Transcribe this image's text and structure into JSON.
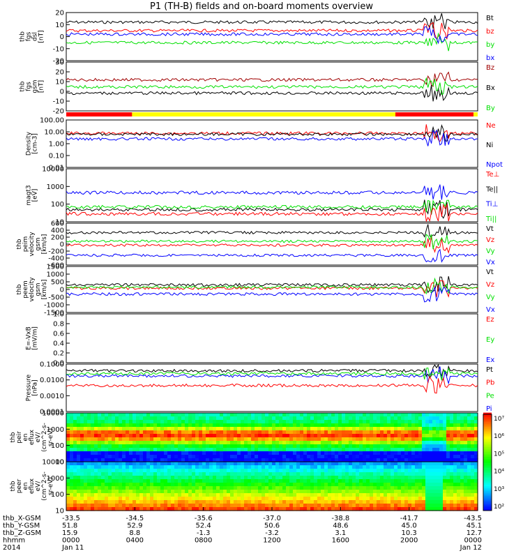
{
  "title": "P1 (TH-B) fields and on-board moments overview",
  "colors": {
    "black": "#000000",
    "red": "#ff0000",
    "green": "#00e000",
    "blue": "#0000ff",
    "darkred": "#a00000",
    "yellow": "#ffff00"
  },
  "chart_data": [
    {
      "type": "line",
      "id": "fgs_dsl",
      "ylabel": [
        "thb",
        "fgs",
        "dsl",
        "[nT]"
      ],
      "yticks": [
        "20",
        "10",
        "0",
        "-10",
        "-20"
      ],
      "ylim": [
        -20,
        20
      ],
      "legend": [
        {
          "name": "Bt",
          "color": "black"
        },
        {
          "name": "bz",
          "color": "red"
        },
        {
          "name": "by",
          "color": "green"
        },
        {
          "name": "bx",
          "color": "blue"
        }
      ],
      "series": [
        {
          "name": "Bt",
          "color": "black",
          "level": 12
        },
        {
          "name": "bz",
          "color": "red",
          "level": 5
        },
        {
          "name": "by",
          "color": "green",
          "level": -5
        },
        {
          "name": "bx",
          "color": "blue",
          "level": 2
        }
      ]
    },
    {
      "type": "line",
      "id": "fgs_gsm",
      "ylabel": [
        "thb",
        "fgs",
        "gsm",
        "[nT]"
      ],
      "yticks": [
        "30",
        "20",
        "10",
        "0",
        "-10",
        "-20"
      ],
      "ylim": [
        -25,
        30
      ],
      "legend": [
        {
          "name": "Bz",
          "color": "darkred"
        },
        {
          "name": "Bx",
          "color": "black"
        },
        {
          "name": "By",
          "color": "green"
        }
      ],
      "series": [
        {
          "name": "Bz",
          "color": "darkred",
          "level": 10
        },
        {
          "name": "Bx",
          "color": "black",
          "level": -5
        },
        {
          "name": "By",
          "color": "green",
          "level": 2
        }
      ]
    },
    {
      "type": "bar",
      "id": "mode_bar",
      "segments": [
        {
          "from": 0,
          "to": 0.16,
          "color": "red"
        },
        {
          "from": 0.16,
          "to": 0.8,
          "color": "yellow"
        },
        {
          "from": 0.8,
          "to": 0.99,
          "color": "red"
        },
        {
          "from": 0.99,
          "to": 1,
          "color": "yellow"
        }
      ]
    },
    {
      "type": "line",
      "id": "density",
      "ylabel": [
        "Density",
        "[cm-3]"
      ],
      "yticks": [
        "100.00",
        "10.00",
        "1.00",
        "0.10",
        "0.01"
      ],
      "log": true,
      "legend": [
        {
          "name": "Ne",
          "color": "red"
        },
        {
          "name": "Ni",
          "color": "black"
        },
        {
          "name": "Npot",
          "color": "blue"
        }
      ],
      "series": [
        {
          "name": "Ne",
          "color": "red",
          "level": 0.72
        },
        {
          "name": "Ni",
          "color": "black",
          "level": 0.7
        },
        {
          "name": "Npot",
          "color": "blue",
          "level": 0.6
        }
      ]
    },
    {
      "type": "line",
      "id": "temperature",
      "ylabel": [
        "magt3",
        "[eV]"
      ],
      "yticks": [
        "10000",
        "1000",
        "100",
        "10"
      ],
      "log": true,
      "legend": [
        {
          "name": "Te⊥",
          "color": "red"
        },
        {
          "name": "Te||",
          "color": "black"
        },
        {
          "name": "Ti⊥",
          "color": "blue"
        },
        {
          "name": "Ti||",
          "color": "green"
        }
      ],
      "series": [
        {
          "name": "Te||",
          "color": "black",
          "level": 0.23
        },
        {
          "name": "Ti||",
          "color": "green",
          "level": 0.28
        },
        {
          "name": "Ti⊥",
          "color": "blue",
          "level": 0.55
        },
        {
          "name": "Te⊥",
          "color": "red",
          "level": 0.15
        }
      ]
    },
    {
      "type": "line",
      "id": "peim_velocity",
      "ylabel": [
        "thb",
        "peim",
        "velocity",
        "gsm",
        "[km/s]"
      ],
      "yticks": [
        "600",
        "400",
        "200",
        "0",
        "-200",
        "-400",
        "-600"
      ],
      "ylim": [
        -600,
        600
      ],
      "legend": [
        {
          "name": "Vt",
          "color": "black"
        },
        {
          "name": "Vz",
          "color": "red"
        },
        {
          "name": "Vy",
          "color": "green"
        },
        {
          "name": "Vx",
          "color": "blue"
        }
      ],
      "series": [
        {
          "name": "Vt",
          "color": "black",
          "level": 330
        },
        {
          "name": "Vz",
          "color": "red",
          "level": -30
        },
        {
          "name": "Vy",
          "color": "green",
          "level": 80
        },
        {
          "name": "Vx",
          "color": "blue",
          "level": -320
        }
      ]
    },
    {
      "type": "line",
      "id": "peem_velocity",
      "ylabel": [
        "thb",
        "peem",
        "velocity",
        "gsm",
        "[km/s]"
      ],
      "yticks": [
        "1500",
        "1000",
        "500",
        "0",
        "-500",
        "-1000",
        "-1500"
      ],
      "ylim": [
        -1500,
        1500
      ],
      "legend": [
        {
          "name": "Vt",
          "color": "black"
        },
        {
          "name": "Vz",
          "color": "red"
        },
        {
          "name": "Vy",
          "color": "green"
        },
        {
          "name": "Vx",
          "color": "blue"
        }
      ],
      "series": [
        {
          "name": "Vt",
          "color": "black",
          "level": 300
        },
        {
          "name": "Vz",
          "color": "red",
          "level": 80
        },
        {
          "name": "Vy",
          "color": "green",
          "level": 150
        },
        {
          "name": "Vx",
          "color": "blue",
          "level": -300
        }
      ]
    },
    {
      "type": "line",
      "id": "efield",
      "ylabel": [
        "E=-VxB",
        "[mV/m]"
      ],
      "yticks": [
        "1.0",
        "0.8",
        "0.6",
        "0.4",
        "0.2",
        "0.0"
      ],
      "ylim": [
        0,
        1
      ],
      "legend": [
        {
          "name": "Ez",
          "color": "red"
        },
        {
          "name": "Ey",
          "color": "green"
        },
        {
          "name": "Ex",
          "color": "blue"
        }
      ],
      "series": []
    },
    {
      "type": "line",
      "id": "pressure",
      "ylabel": [
        "Pressure",
        "[nPa]"
      ],
      "yticks": [
        "0.1000",
        "0.0100",
        "0.0010",
        "0.0001"
      ],
      "log": true,
      "legend": [
        {
          "name": "Pt",
          "color": "black"
        },
        {
          "name": "Pb",
          "color": "red"
        },
        {
          "name": "Pe",
          "color": "green"
        },
        {
          "name": "Pi",
          "color": "blue"
        }
      ],
      "series": [
        {
          "name": "Pt",
          "color": "black",
          "level": 0.86
        },
        {
          "name": "Pi",
          "color": "blue",
          "level": 0.75
        },
        {
          "name": "Pe",
          "color": "green",
          "level": 0.8
        },
        {
          "name": "Pb",
          "color": "red",
          "level": 0.55
        }
      ]
    },
    {
      "type": "heatmap",
      "id": "peir_spectrogram",
      "ylabel": [
        "thb",
        "peir",
        "en",
        "eflux",
        "eV/",
        "(cm^2-s-",
        "sr-eV)"
      ],
      "yticks": [
        "10000",
        "1000",
        "100",
        "10"
      ],
      "log": true
    },
    {
      "type": "heatmap",
      "id": "peer_spectrogram",
      "ylabel": [
        "thb",
        "peer",
        "en",
        "eflux",
        "eV/",
        "(cm^2-s-",
        "sr-eV)"
      ],
      "yticks": [
        "10000",
        "1000",
        "100",
        "10"
      ],
      "log": true
    }
  ],
  "colorbar": {
    "ticks": [
      "10⁷",
      "10⁶",
      "10⁵",
      "10⁴",
      "10³",
      "10²"
    ]
  },
  "xaxis": {
    "tick_values": [
      0,
      4,
      8,
      12,
      16,
      20,
      24
    ],
    "rows": [
      {
        "label": "thb_X-GSM",
        "values": [
          "-33.5",
          "-34.5",
          "-35.6",
          "-37.0",
          "-38.8",
          "-41.7",
          "-43.5"
        ]
      },
      {
        "label": "thb_Y-GSM",
        "values": [
          "51.8",
          "52.9",
          "52.4",
          "50.6",
          "48.6",
          "45.0",
          "45.1"
        ]
      },
      {
        "label": "thb_Z-GSM",
        "values": [
          "15.9",
          "8.8",
          "-1.3",
          "-3.2",
          "3.1",
          "10.3",
          "12.7"
        ]
      },
      {
        "label": "hhmm",
        "values": [
          "0000",
          "0400",
          "0800",
          "1200",
          "1600",
          "2000",
          "0000"
        ]
      },
      {
        "label": "2014",
        "values": [
          "Jan 11",
          "",
          "",
          "",
          "",
          "",
          "Jan 12"
        ]
      }
    ]
  }
}
